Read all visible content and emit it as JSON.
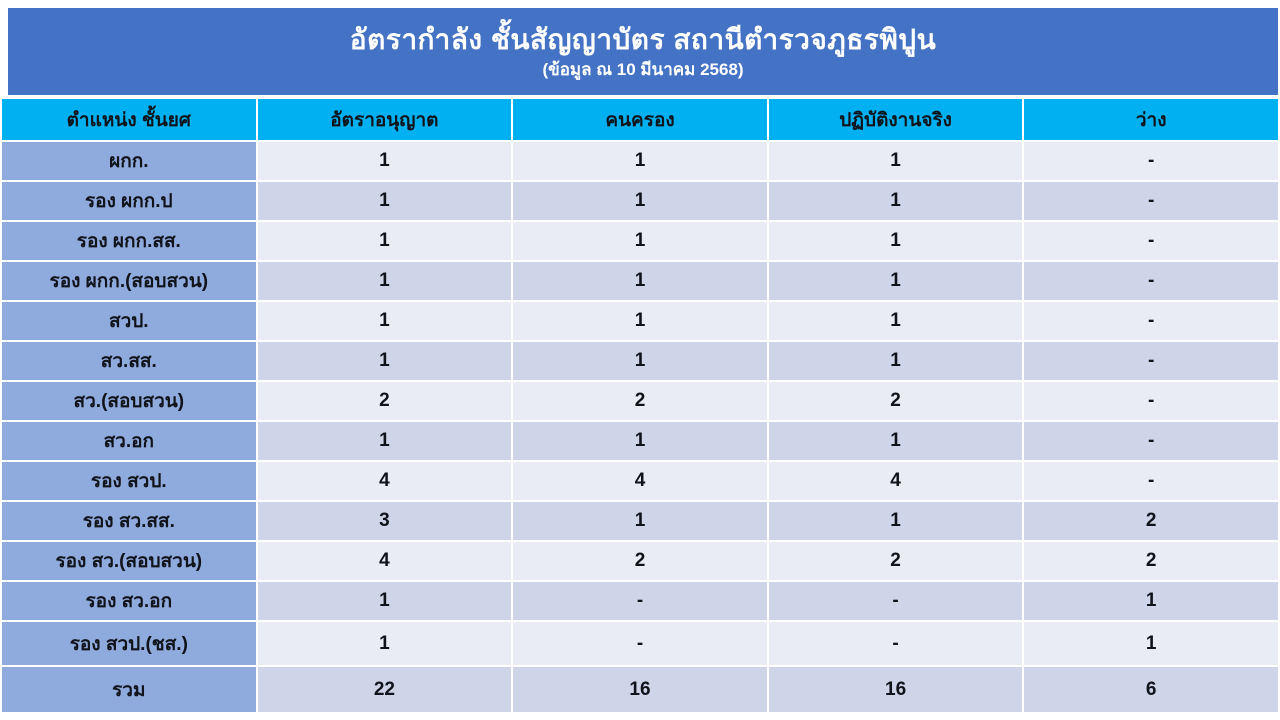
{
  "title": {
    "line1": "อัตรากำลัง ชั้นสัญญาบัตร สถานีตำรวจภูธรพิปูน",
    "line2": "(ข้อมูล ณ 10 มีนาคม 2568)"
  },
  "colors": {
    "title_bar": "#4472C4",
    "header_row": "#00B0F0",
    "first_column": "#8FAADC",
    "band_light": "#E9EBF5",
    "band_dark": "#CFD5E8",
    "title_text": "#FFFFFF",
    "cell_text": "#10131A"
  },
  "table": {
    "headers": [
      "ตำแหน่ง ชั้นยศ",
      "อัตราอนุญาต",
      "คนครอง",
      "ปฏิบัติงานจริง",
      "ว่าง"
    ],
    "rows": [
      {
        "label": "ผกก.",
        "values": [
          "1",
          "1",
          "1",
          "-"
        ]
      },
      {
        "label": "รอง ผกก.ป",
        "values": [
          "1",
          "1",
          "1",
          "-"
        ]
      },
      {
        "label": "รอง ผกก.สส.",
        "values": [
          "1",
          "1",
          "1",
          "-"
        ]
      },
      {
        "label": "รอง ผกก.(สอบสวน)",
        "values": [
          "1",
          "1",
          "1",
          "-"
        ]
      },
      {
        "label": "สวป.",
        "values": [
          "1",
          "1",
          "1",
          "-"
        ]
      },
      {
        "label": "สว.สส.",
        "values": [
          "1",
          "1",
          "1",
          "-"
        ]
      },
      {
        "label": "สว.(สอบสวน)",
        "values": [
          "2",
          "2",
          "2",
          "-"
        ]
      },
      {
        "label": "สว.อก",
        "values": [
          "1",
          "1",
          "1",
          "-"
        ]
      },
      {
        "label": "รอง สวป.",
        "values": [
          "4",
          "4",
          "4",
          "-"
        ]
      },
      {
        "label": "รอง สว.สส.",
        "values": [
          "3",
          "1",
          "1",
          "2"
        ]
      },
      {
        "label": "รอง สว.(สอบสวน)",
        "values": [
          "4",
          "2",
          "2",
          "2"
        ]
      },
      {
        "label": "รอง สว.อก",
        "values": [
          "1",
          "-",
          "-",
          "1"
        ]
      },
      {
        "label": "รอง สวป.(ชส.)",
        "values": [
          "1",
          "-",
          "-",
          "1"
        ]
      },
      {
        "label": "รวม",
        "values": [
          "22",
          "16",
          "16",
          "6"
        ]
      }
    ]
  }
}
